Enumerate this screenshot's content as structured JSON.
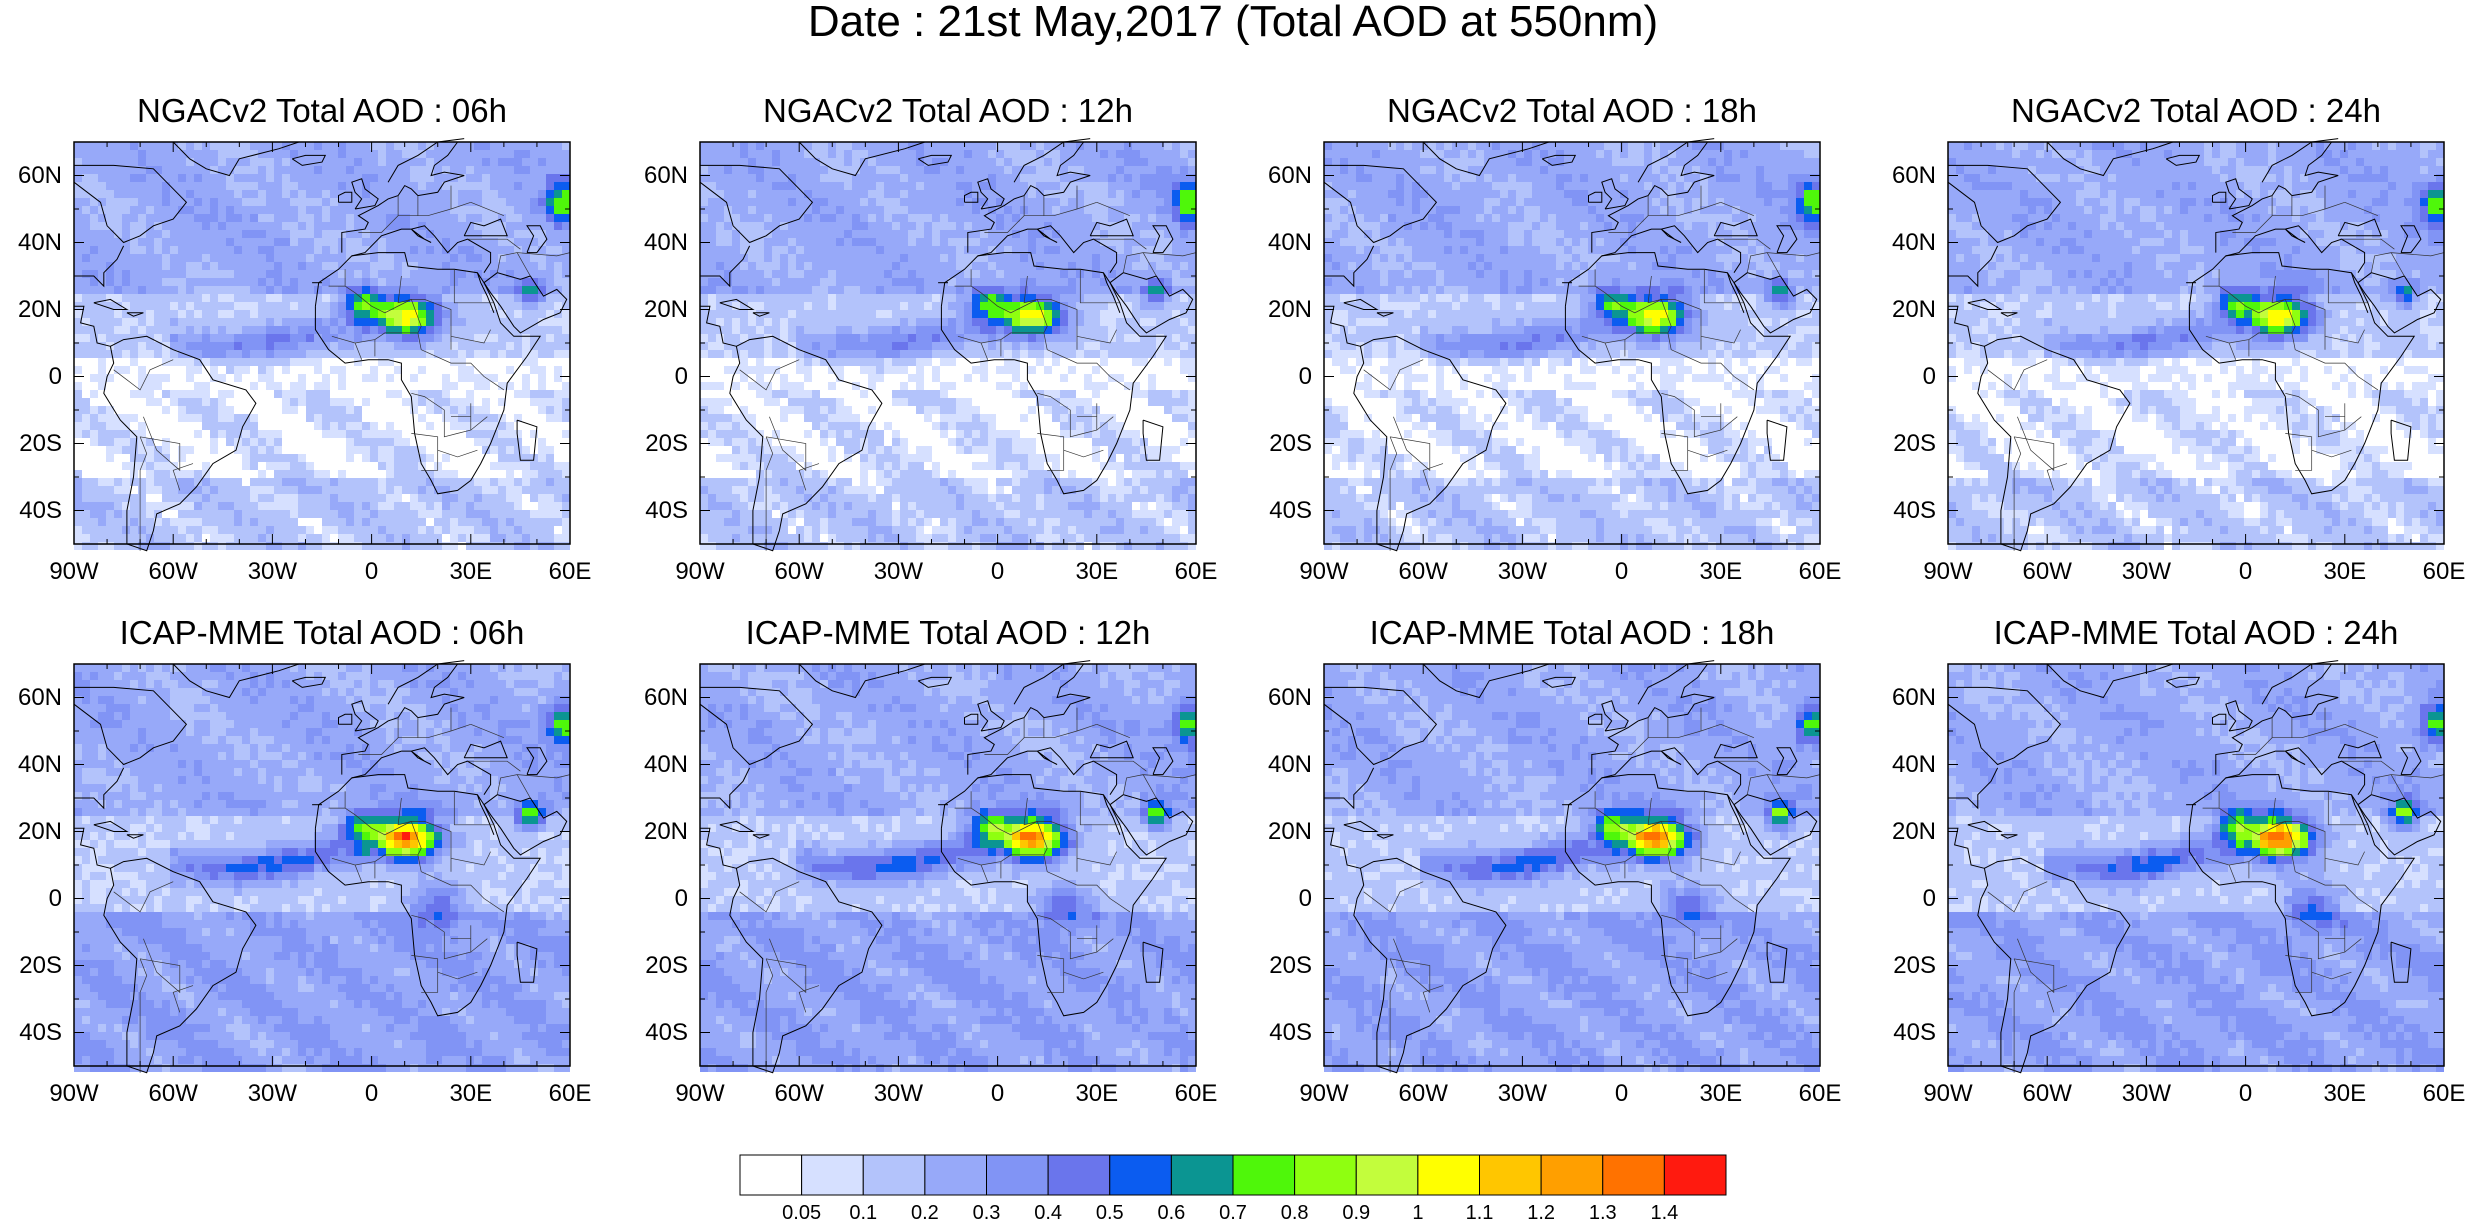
{
  "title": "Date : 21st May,2017 (Total AOD at 550nm)",
  "lon_labels": [
    "90W",
    "60W",
    "30W",
    "0",
    "30E",
    "60E"
  ],
  "lat_labels": [
    "60N",
    "40N",
    "20N",
    "0",
    "20S",
    "40S"
  ],
  "panels": [
    {
      "title": "NGACv2 Total AOD : 06h",
      "model": "NGACv2",
      "hour": "06h"
    },
    {
      "title": "NGACv2 Total AOD : 12h",
      "model": "NGACv2",
      "hour": "12h"
    },
    {
      "title": "NGACv2 Total AOD : 18h",
      "model": "NGACv2",
      "hour": "18h"
    },
    {
      "title": "NGACv2 Total AOD : 24h",
      "model": "NGACv2",
      "hour": "24h"
    },
    {
      "title": "ICAP-MME Total AOD : 06h",
      "model": "ICAP-MME",
      "hour": "06h"
    },
    {
      "title": "ICAP-MME Total AOD : 12h",
      "model": "ICAP-MME",
      "hour": "12h"
    },
    {
      "title": "ICAP-MME Total AOD : 18h",
      "model": "ICAP-MME",
      "hour": "18h"
    },
    {
      "title": "ICAP-MME Total AOD : 24h",
      "model": "ICAP-MME",
      "hour": "24h"
    }
  ],
  "colorbar": {
    "labels": [
      "0.05",
      "0.1",
      "0.2",
      "0.3",
      "0.4",
      "0.5",
      "0.6",
      "0.7",
      "0.8",
      "0.9",
      "1",
      "1.1",
      "1.2",
      "1.3",
      "1.4"
    ],
    "colors": [
      "#ffffff",
      "#d6e0ff",
      "#b3c3fb",
      "#97a9f9",
      "#8194f5",
      "#6a75ec",
      "#0b5cf0",
      "#0b9592",
      "#4ff70a",
      "#8fff10",
      "#c3fd3c",
      "#ffff00",
      "#ffc600",
      "#ff9f00",
      "#ff7200",
      "#ff1a0f"
    ]
  }
}
